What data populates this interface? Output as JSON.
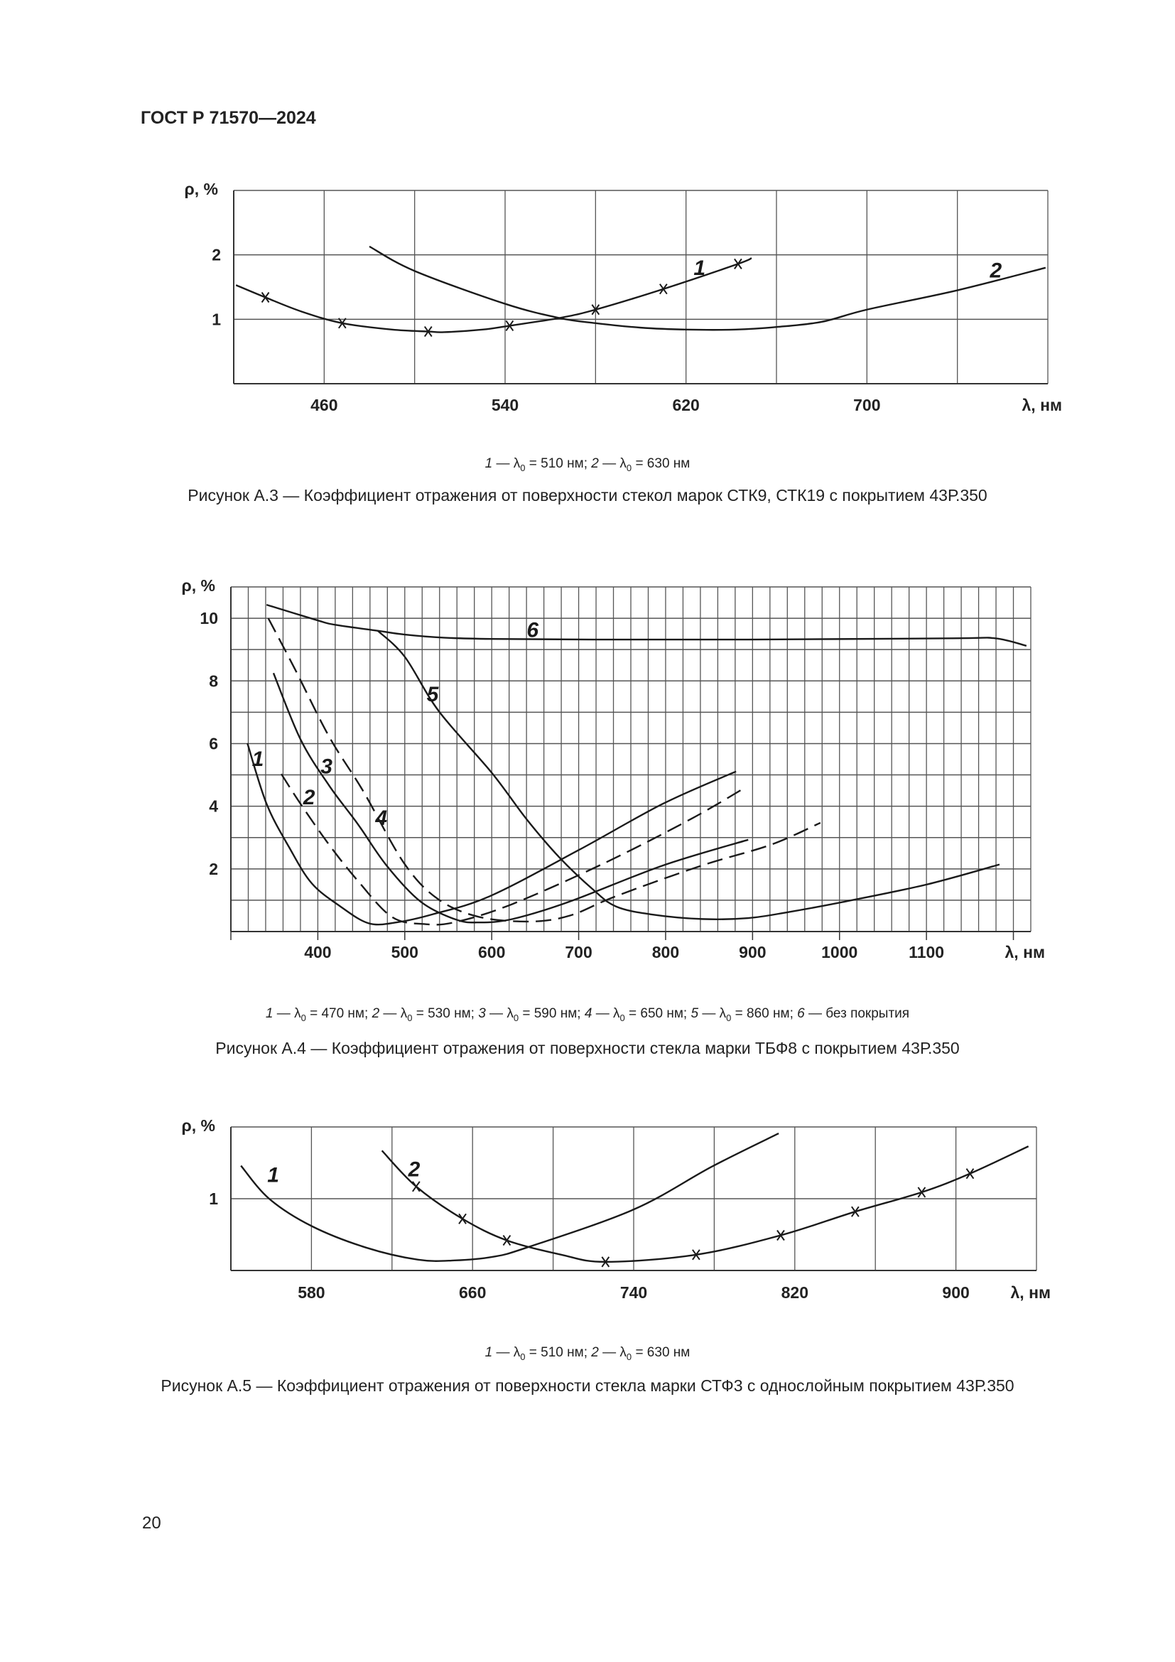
{
  "header": {
    "title": "ГОСТ Р 71570—2024"
  },
  "page_number": "20",
  "legend_symbol": {
    "lambda": "λ",
    "sub": "0",
    "dash": "—"
  },
  "chart_data": [
    {
      "type": "line",
      "ylabel": "ρ, %",
      "xlabel": "λ, нм",
      "xlim": [
        420,
        780
      ],
      "ylim": [
        0,
        3
      ],
      "xticks": [
        460,
        540,
        620,
        700
      ],
      "yticks": [
        1,
        2
      ],
      "grid": true,
      "legend": [
        {
          "num": "1",
          "value": "= 510 нм"
        },
        {
          "num": "2",
          "value": "= 630 нм"
        }
      ],
      "caption": "Рисунок А.3 — Коэффициент отражения от поверхности стекол марок СТК9, СТК19 с покрытием 43Р.350",
      "series": [
        {
          "name": "1",
          "dashed": false,
          "label_at": [
            626,
            1.82
          ],
          "x": [
            421,
            434,
            450,
            468,
            490,
            506,
            513,
            530,
            542,
            564,
            580,
            610,
            643,
            649
          ],
          "y": [
            1.53,
            1.34,
            1.12,
            0.94,
            0.84,
            0.81,
            0.8,
            0.84,
            0.9,
            1.02,
            1.15,
            1.47,
            1.86,
            1.95
          ],
          "markers": [
            434,
            468,
            506,
            542,
            580,
            610,
            643
          ]
        },
        {
          "name": "2",
          "dashed": false,
          "label_at": [
            757,
            1.78
          ],
          "x": [
            480,
            500,
            540,
            564,
            580,
            600,
            620,
            642,
            660,
            680,
            700,
            740,
            779
          ],
          "y": [
            2.13,
            1.75,
            1.24,
            1.02,
            0.94,
            0.87,
            0.84,
            0.84,
            0.88,
            0.96,
            1.15,
            1.45,
            1.8
          ],
          "markers": []
        }
      ]
    },
    {
      "type": "line",
      "ylabel": "ρ, %",
      "xlabel": "λ, нм",
      "xlim": [
        300,
        1220
      ],
      "ylim": [
        0,
        11
      ],
      "xticks": [
        400,
        500,
        600,
        700,
        800,
        900,
        1000,
        1100
      ],
      "yticks": [
        2,
        4,
        6,
        8,
        10
      ],
      "grid": true,
      "legend": [
        {
          "num": "1",
          "value": "= 470 нм"
        },
        {
          "num": "2",
          "value": "= 530 нм"
        },
        {
          "num": "3",
          "value": "= 590 нм"
        },
        {
          "num": "4",
          "value": "= 650 нм"
        },
        {
          "num": "5",
          "value": "= 860 нм"
        },
        {
          "num": "6",
          "value": "без покрытия",
          "no_lambda": true
        }
      ],
      "caption": "Рисунок А.4 — Коэффициент отражения от поверхности стекла марки ТБФ8 с покрытием 43Р.350",
      "series": [
        {
          "name": "1",
          "dashed": false,
          "label_at": [
            331,
            5.56
          ],
          "x": [
            319,
            341,
            367,
            393,
            426,
            459,
            492,
            532,
            598,
            700,
            797,
            881
          ],
          "y": [
            6.01,
            4.08,
            2.69,
            1.54,
            0.8,
            0.26,
            0.3,
            0.55,
            1.13,
            2.6,
            4.08,
            5.11
          ],
          "markers": []
        },
        {
          "name": "2",
          "dashed": true,
          "label_at": [
            390,
            4.33
          ],
          "x": [
            358,
            380,
            413,
            446,
            485,
            522,
            558,
            624,
            730,
            829,
            893
          ],
          "y": [
            5.03,
            4.08,
            2.77,
            1.62,
            0.47,
            0.24,
            0.3,
            0.88,
            2.19,
            3.59,
            4.62
          ],
          "markers": []
        },
        {
          "name": "3",
          "dashed": false,
          "label_at": [
            410,
            5.32
          ],
          "x": [
            349,
            380,
            413,
            446,
            479,
            518,
            558,
            585,
            624,
            690,
            797,
            895
          ],
          "y": [
            8.25,
            6.14,
            4.66,
            3.43,
            2.11,
            0.96,
            0.39,
            0.29,
            0.4,
            0.96,
            2.11,
            2.93
          ],
          "markers": []
        },
        {
          "name": "4",
          "dashed": true,
          "label_at": [
            473,
            3.67
          ],
          "x": [
            343,
            374,
            413,
            452,
            499,
            538,
            585,
            644,
            690,
            743,
            842,
            921,
            978
          ],
          "y": [
            10.0,
            8.36,
            6.22,
            4.49,
            2.19,
            1.04,
            0.47,
            0.32,
            0.51,
            1.13,
            2.11,
            2.77,
            3.47
          ],
          "markers": []
        },
        {
          "name": "5",
          "dashed": false,
          "label_at": [
            532,
            7.62
          ],
          "x": [
            469,
            500,
            539,
            600,
            640,
            678,
            717,
            743,
            783,
            842,
            895,
            941,
            1007,
            1100,
            1184
          ],
          "y": [
            9.6,
            8.77,
            7.04,
            5.07,
            3.59,
            2.36,
            1.33,
            0.8,
            0.55,
            0.4,
            0.43,
            0.62,
            0.96,
            1.5,
            2.14
          ],
          "markers": []
        },
        {
          "name": "6",
          "dashed": false,
          "label_at": [
            647,
            9.67
          ],
          "x": [
            341,
            400,
            420,
            469,
            500,
            545,
            600,
            717,
            895,
            1129,
            1179,
            1215
          ],
          "y": [
            10.43,
            9.93,
            9.79,
            9.6,
            9.48,
            9.38,
            9.34,
            9.32,
            9.32,
            9.36,
            9.36,
            9.12
          ],
          "markers": []
        }
      ]
    },
    {
      "type": "line",
      "ylabel": "ρ, %",
      "xlabel": "λ, нм",
      "xlim": [
        540,
        940
      ],
      "ylim": [
        0,
        2
      ],
      "xticks": [
        580,
        660,
        740,
        820,
        900
      ],
      "yticks": [
        1
      ],
      "grid": true,
      "legend": [
        {
          "num": "1",
          "value": "= 510 нм"
        },
        {
          "num": "2",
          "value": "= 630 нм"
        }
      ],
      "caption": "Рисунок А.5 — Коэффициент отражения от поверхности стекла марки СТФ3 с однослойным покрытием 43Р.350",
      "series": [
        {
          "name": "1",
          "dashed": false,
          "label_at": [
            561,
            1.35
          ],
          "x": [
            545,
            559,
            580,
            607,
            633,
            651,
            670,
            687,
            740,
            779,
            812
          ],
          "y": [
            1.46,
            1.0,
            0.62,
            0.32,
            0.15,
            0.14,
            0.19,
            0.32,
            0.85,
            1.45,
            1.91
          ],
          "markers": []
        },
        {
          "name": "2",
          "dashed": false,
          "label_at": [
            631,
            1.43
          ],
          "x": [
            615,
            632,
            655,
            677,
            704,
            726,
            771,
            813,
            850,
            883,
            907,
            936
          ],
          "y": [
            1.67,
            1.17,
            0.72,
            0.42,
            0.22,
            0.12,
            0.22,
            0.49,
            0.82,
            1.09,
            1.35,
            1.73
          ],
          "markers": [
            632,
            655,
            677,
            726,
            771,
            813,
            850,
            883,
            907
          ]
        }
      ]
    }
  ]
}
